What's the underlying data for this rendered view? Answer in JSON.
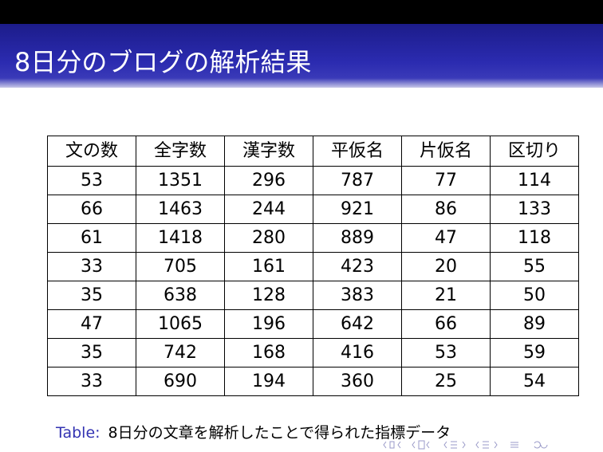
{
  "header": {
    "title": "8日分のブログの解析結果"
  },
  "table": {
    "header": [
      "文の数",
      "全字数",
      "漢字数",
      "平仮名",
      "片仮名",
      "区切り"
    ],
    "rows": [
      [
        53,
        1351,
        296,
        787,
        77,
        114
      ],
      [
        66,
        1463,
        244,
        921,
        86,
        133
      ],
      [
        61,
        1418,
        280,
        889,
        47,
        118
      ],
      [
        33,
        705,
        161,
        423,
        20,
        55
      ],
      [
        35,
        638,
        128,
        383,
        21,
        50
      ],
      [
        47,
        1065,
        196,
        642,
        66,
        89
      ],
      [
        35,
        742,
        168,
        416,
        53,
        59
      ],
      [
        33,
        690,
        194,
        360,
        25,
        54
      ]
    ]
  },
  "caption": {
    "label": "Table:",
    "text": "8日分の文章を解析したことで得られた指標データ"
  }
}
